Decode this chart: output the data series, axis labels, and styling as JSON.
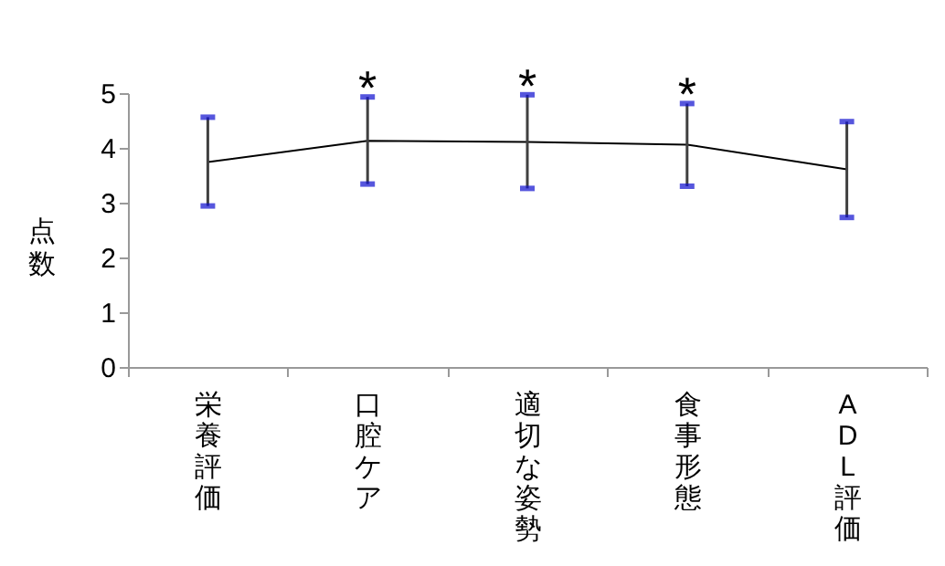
{
  "chart_data": {
    "type": "line",
    "ylabel": "点数",
    "categories": [
      "栄養評価",
      "口腔ケア",
      "適切な姿勢",
      "食事形態",
      "ADL評価"
    ],
    "series": [
      {
        "color": "#000000",
        "values": [
          3.74,
          4.13,
          4.11,
          4.06,
          3.61
        ],
        "errors": [
          [
            2.94,
            4.56
          ],
          [
            3.34,
            4.93
          ],
          [
            3.26,
            4.97
          ],
          [
            3.3,
            4.81
          ],
          [
            2.73,
            4.48
          ]
        ]
      }
    ],
    "ylim": [
      0,
      5
    ],
    "yticks": [
      0,
      1,
      2,
      3,
      4,
      5
    ],
    "grid": false,
    "annotations": [
      {
        "text": "*",
        "x": "口腔ケア",
        "y": 4.93
      },
      {
        "text": "*",
        "x": "適切な姿勢",
        "y": 4.97
      },
      {
        "text": "*",
        "x": "食事形態",
        "y": 4.81
      }
    ]
  }
}
